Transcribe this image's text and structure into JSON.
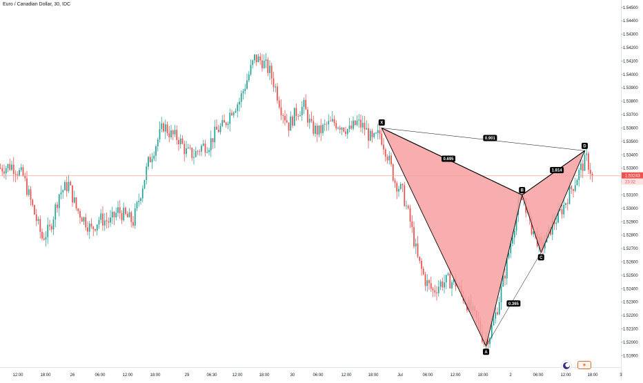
{
  "chart_title": "Euro / Canadian Dollar, 30, IDC",
  "colors": {
    "up": "#26a69a",
    "down": "#ef5350",
    "pattern_fill": "#f7a0a0",
    "pattern_line": "#000000",
    "price_line": "#f0a59c",
    "price_tag": "#ef5350"
  },
  "chart_data": {
    "type": "candlestick",
    "symbol": "Euro / Canadian Dollar",
    "interval": "30",
    "source": "IDC",
    "y_axis": {
      "ticks": [
        "1.54500",
        "1.54400",
        "1.54300",
        "1.54200",
        "1.54100",
        "1.54000",
        "1.53900",
        "1.53800",
        "1.53700",
        "1.53600",
        "1.53500",
        "1.53400",
        "1.53300",
        "1.53200",
        "1.53100",
        "1.53000",
        "1.52900",
        "1.52800",
        "1.52700",
        "1.52600",
        "1.52500",
        "1.52400",
        "1.52300",
        "1.52200",
        "1.52100",
        "1.52000",
        "1.51900"
      ],
      "range": [
        1.5185,
        1.5453
      ]
    },
    "x_axis": {
      "ticks": [
        "12:00",
        "18:00",
        "26",
        "06:00",
        "12:00",
        "18:00",
        "29",
        "06:30",
        "12:00",
        "18:00",
        "30",
        "06:00",
        "12:00",
        "18:00",
        "Jul",
        "06:00",
        "12:00",
        "18:00",
        "2",
        "06:00",
        "12:00",
        "18:00",
        "3"
      ]
    },
    "last_price": {
      "value": "1.53243",
      "countdown": "23:32"
    },
    "path": [
      [
        0,
        1.533
      ],
      [
        6,
        1.5332
      ],
      [
        12,
        1.5324
      ],
      [
        18,
        1.5296
      ],
      [
        22,
        1.5278
      ],
      [
        26,
        1.5284
      ],
      [
        31,
        1.5311
      ],
      [
        36,
        1.5318
      ],
      [
        40,
        1.53
      ],
      [
        44,
        1.5292
      ],
      [
        48,
        1.5284
      ],
      [
        52,
        1.5292
      ],
      [
        58,
        1.529
      ],
      [
        62,
        1.5298
      ],
      [
        66,
        1.5294
      ],
      [
        70,
        1.529
      ],
      [
        74,
        1.5312
      ],
      [
        78,
        1.5334
      ],
      [
        82,
        1.5348
      ],
      [
        86,
        1.5362
      ],
      [
        90,
        1.5355
      ],
      [
        94,
        1.5352
      ],
      [
        98,
        1.5342
      ],
      [
        102,
        1.534
      ],
      [
        106,
        1.5346
      ],
      [
        110,
        1.5348
      ],
      [
        114,
        1.5358
      ],
      [
        118,
        1.5362
      ],
      [
        122,
        1.5374
      ],
      [
        126,
        1.538
      ],
      [
        130,
        1.5396
      ],
      [
        134,
        1.5412
      ],
      [
        138,
        1.541
      ],
      [
        142,
        1.5402
      ],
      [
        145,
        1.539
      ],
      [
        148,
        1.5375
      ],
      [
        152,
        1.5362
      ],
      [
        156,
        1.5372
      ],
      [
        160,
        1.5376
      ],
      [
        164,
        1.536
      ],
      [
        168,
        1.5357
      ],
      [
        172,
        1.5362
      ],
      [
        176,
        1.5364
      ],
      [
        180,
        1.5362
      ],
      [
        184,
        1.5358
      ],
      [
        188,
        1.5364
      ],
      [
        192,
        1.536
      ],
      [
        196,
        1.535
      ],
      [
        200,
        1.5356
      ],
      [
        204,
        1.534
      ],
      [
        208,
        1.532
      ],
      [
        212,
        1.5312
      ],
      [
        216,
        1.529
      ],
      [
        220,
        1.5262
      ],
      [
        224,
        1.5246
      ],
      [
        228,
        1.5238
      ],
      [
        232,
        1.5244
      ],
      [
        236,
        1.5246
      ],
      [
        240,
        1.5244
      ],
      [
        244,
        1.5234
      ],
      [
        248,
        1.5224
      ],
      [
        252,
        1.5214
      ],
      [
        255,
        1.52
      ],
      [
        258,
        1.5206
      ],
      [
        262,
        1.5226
      ],
      [
        266,
        1.5252
      ],
      [
        270,
        1.5282
      ],
      [
        273,
        1.5302
      ],
      [
        276,
        1.5308
      ],
      [
        279,
        1.5288
      ],
      [
        282,
        1.528
      ],
      [
        285,
        1.527
      ],
      [
        288,
        1.5278
      ],
      [
        291,
        1.5288
      ],
      [
        294,
        1.5294
      ],
      [
        297,
        1.5302
      ],
      [
        300,
        1.5312
      ],
      [
        303,
        1.532
      ],
      [
        306,
        1.533
      ],
      [
        309,
        1.5337
      ],
      [
        312,
        1.5324
      ]
    ],
    "harmonic_pattern": {
      "points": [
        {
          "label": "X",
          "t": 201,
          "p": 1.536
        },
        {
          "label": "A",
          "t": 256,
          "p": 1.5197
        },
        {
          "label": "B",
          "t": 275,
          "p": 1.531
        },
        {
          "label": "C",
          "t": 285,
          "p": 1.5267
        },
        {
          "label": "D",
          "t": 308,
          "p": 1.5343
        }
      ],
      "ratios": [
        {
          "value": "0.695",
          "from": "XA",
          "to": "AB"
        },
        {
          "value": "0.365",
          "from": "AB",
          "to": "BC"
        },
        {
          "value": "1.814",
          "from": "BC",
          "to": "CD"
        },
        {
          "value": "0.901",
          "from": "XA",
          "to": "XD"
        }
      ]
    }
  }
}
